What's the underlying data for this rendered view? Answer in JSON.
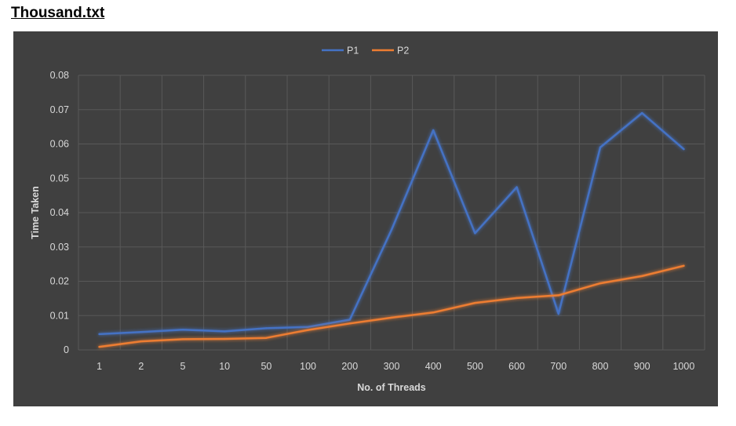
{
  "page": {
    "title": "Thousand.txt"
  },
  "colors": {
    "background": "#404040",
    "grid": "#595959",
    "P1": "#4472c4",
    "P2": "#ed7d31"
  },
  "chart_data": {
    "type": "line",
    "title": "",
    "xlabel": "No. of Threads",
    "ylabel": "Time Taken",
    "categories": [
      "1",
      "2",
      "5",
      "10",
      "50",
      "100",
      "200",
      "300",
      "400",
      "500",
      "600",
      "700",
      "800",
      "900",
      "1000"
    ],
    "ylim": [
      0,
      0.08
    ],
    "yticks": [
      "0",
      "0.01",
      "0.02",
      "0.03",
      "0.04",
      "0.05",
      "0.06",
      "0.07",
      "0.08"
    ],
    "grid": true,
    "legend_position": "top",
    "series": [
      {
        "name": "P1",
        "values": [
          0.0046,
          0.0052,
          0.0059,
          0.0054,
          0.0063,
          0.0067,
          0.0088,
          0.035,
          0.064,
          0.034,
          0.0474,
          0.0105,
          0.059,
          0.069,
          0.0585
        ]
      },
      {
        "name": "P2",
        "values": [
          0.0009,
          0.0025,
          0.0031,
          0.0032,
          0.0035,
          0.0058,
          0.0077,
          0.0094,
          0.0109,
          0.0137,
          0.0151,
          0.0159,
          0.0194,
          0.0215,
          0.0245
        ]
      }
    ]
  }
}
